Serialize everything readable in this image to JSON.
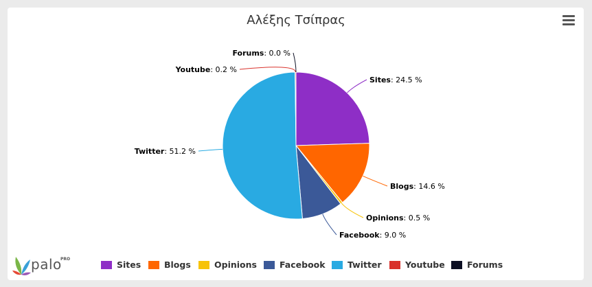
{
  "chart_data": {
    "type": "pie",
    "title": "Αλέξης Τσίπρας",
    "categories": [
      "Sites",
      "Blogs",
      "Opinions",
      "Facebook",
      "Twitter",
      "Youtube",
      "Forums"
    ],
    "values": [
      24.5,
      14.6,
      0.5,
      9.0,
      51.2,
      0.2,
      0.0
    ],
    "value_labels": [
      "24.5 %",
      "14.6 %",
      "0.5 %",
      "9.0 %",
      "51.2 %",
      "0.2 %",
      "0.0 %"
    ],
    "colors": [
      "#8e2ec6",
      "#ff6600",
      "#f7c308",
      "#3b5998",
      "#29aae2",
      "#d9312b",
      "#0c0f23"
    ],
    "legend": "bottom"
  },
  "menu_icon": "hamburger-menu-icon",
  "logo": {
    "text": "palo",
    "sup": "PRO"
  }
}
